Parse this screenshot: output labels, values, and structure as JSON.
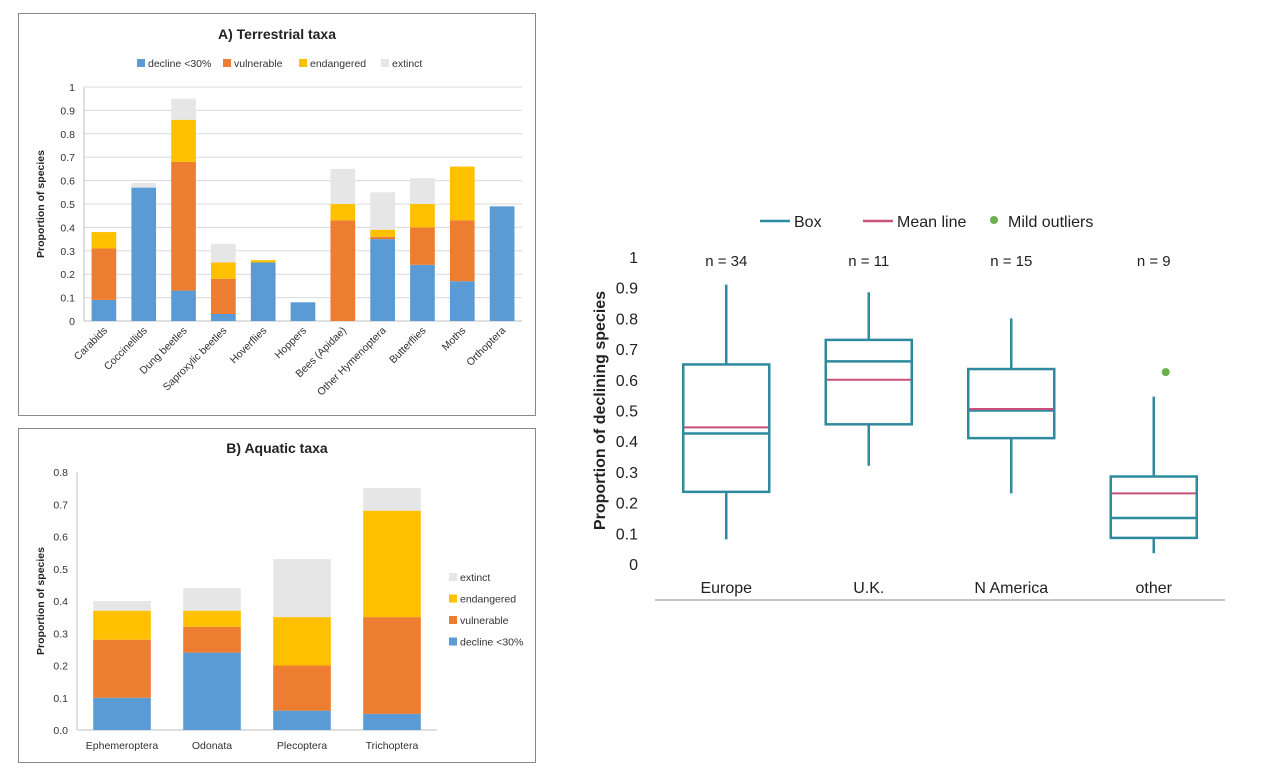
{
  "chart_data": [
    {
      "type": "bar",
      "stacked": true,
      "title": "A) Terrestrial taxa",
      "ylabel": "Proportion of species",
      "ylim": [
        0,
        1
      ],
      "yticks": [
        "0",
        "0.1",
        "0.2",
        "0.3",
        "0.4",
        "0.5",
        "0.6",
        "0.7",
        "0.8",
        "0.9",
        "1"
      ],
      "legend_position": "top",
      "grid": true,
      "categories": [
        "Carabids",
        "Coccinellids",
        "Dung beetles",
        "Saproxylic beetles",
        "Hoverflies",
        "Hoppers",
        "Bees (Apidae)",
        "Other Hymenoptera",
        "Butterflies",
        "Moths",
        "Orthoptera"
      ],
      "series": [
        {
          "name": "decline <30%",
          "color": "#5b9bd5",
          "values": [
            0.09,
            0.57,
            0.13,
            0.03,
            0.25,
            0.08,
            0.0,
            0.35,
            0.24,
            0.17,
            0.49
          ]
        },
        {
          "name": "vulnerable",
          "color": "#ed7d31",
          "values": [
            0.22,
            0.0,
            0.55,
            0.15,
            0.0,
            0.0,
            0.43,
            0.01,
            0.16,
            0.26,
            0.0
          ]
        },
        {
          "name": "endangered",
          "color": "#ffc000",
          "values": [
            0.07,
            0.0,
            0.18,
            0.07,
            0.01,
            0.0,
            0.07,
            0.03,
            0.1,
            0.23,
            0.0
          ]
        },
        {
          "name": "extinct",
          "color": "#e6e6e6",
          "values": [
            0.0,
            0.02,
            0.09,
            0.08,
            0.0,
            0.0,
            0.15,
            0.16,
            0.11,
            0.0,
            0.0
          ]
        }
      ]
    },
    {
      "type": "bar",
      "stacked": true,
      "title": "B) Aquatic taxa",
      "ylabel": "Proportion of species",
      "ylim": [
        0,
        0.8
      ],
      "yticks": [
        "0.0",
        "0.1",
        "0.2",
        "0.3",
        "0.4",
        "0.5",
        "0.6",
        "0.7",
        "0.8"
      ],
      "legend_position": "right",
      "grid": false,
      "categories": [
        "Ephemeroptera",
        "Odonata",
        "Plecoptera",
        "Trichoptera"
      ],
      "series": [
        {
          "name": "decline <30%",
          "color": "#5b9bd5",
          "values": [
            0.1,
            0.24,
            0.06,
            0.05
          ]
        },
        {
          "name": "vulnerable",
          "color": "#ed7d31",
          "values": [
            0.18,
            0.08,
            0.14,
            0.3
          ]
        },
        {
          "name": "endangered",
          "color": "#ffc000",
          "values": [
            0.09,
            0.05,
            0.15,
            0.33
          ]
        },
        {
          "name": "extinct",
          "color": "#e6e6e6",
          "values": [
            0.03,
            0.07,
            0.18,
            0.07
          ]
        }
      ]
    },
    {
      "type": "box",
      "ylabel": "Proportion of declining species",
      "ylim": [
        0,
        1
      ],
      "yticks": [
        "0",
        "0.1",
        "0.2",
        "0.3",
        "0.4",
        "0.5",
        "0.6",
        "0.7",
        "0.8",
        "0.9",
        "1"
      ],
      "legend_position": "top",
      "grid": false,
      "legend": [
        {
          "name": "Box",
          "color": "#2e8a9e",
          "kind": "line"
        },
        {
          "name": "Mean line",
          "color": "#c8507a",
          "kind": "line"
        },
        {
          "name": "Mild outliers",
          "color": "#6ab04c",
          "kind": "dot"
        }
      ],
      "categories": [
        "Europe",
        "U.K.",
        "N America",
        "other"
      ],
      "n_labels": [
        "n = 34",
        "n = 11",
        "n = 15",
        "n = 9"
      ],
      "boxes": [
        {
          "whisker_low": 0.08,
          "q1": 0.235,
          "median": 0.425,
          "q3": 0.65,
          "whisker_high": 0.91,
          "mean": 0.445,
          "outliers": []
        },
        {
          "whisker_low": 0.32,
          "q1": 0.455,
          "median": 0.66,
          "q3": 0.73,
          "whisker_high": 0.885,
          "mean": 0.6,
          "outliers": []
        },
        {
          "whisker_low": 0.23,
          "q1": 0.41,
          "median": 0.5,
          "q3": 0.635,
          "whisker_high": 0.8,
          "mean": 0.505,
          "outliers": []
        },
        {
          "whisker_low": 0.035,
          "q1": 0.085,
          "median": 0.15,
          "q3": 0.285,
          "whisker_high": 0.545,
          "mean": 0.23,
          "outliers": [
            0.625
          ]
        }
      ]
    }
  ]
}
